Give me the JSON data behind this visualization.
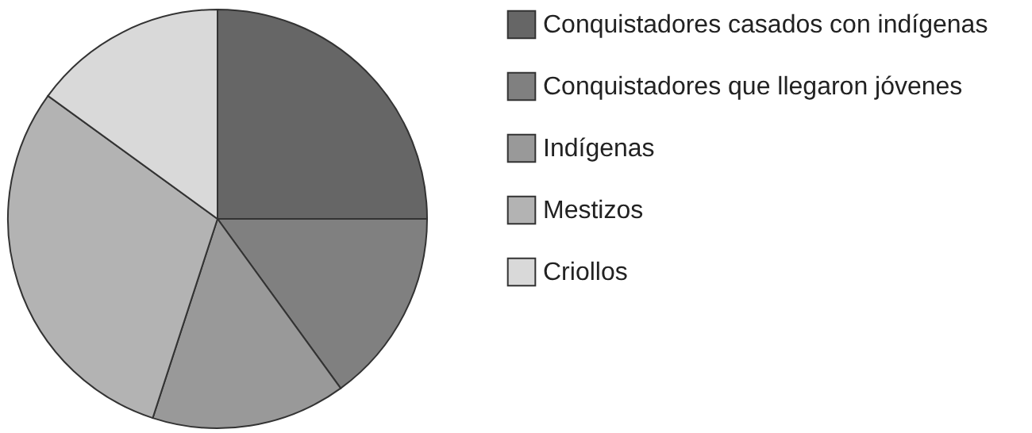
{
  "chart_data": {
    "type": "pie",
    "categories": [
      "Conquistadores casados con indígenas",
      "Conquistadores que llegaron jóvenes",
      "Indígenas",
      "Mestizos",
      "Criollos"
    ],
    "values": [
      25,
      15,
      15,
      30,
      15
    ],
    "colors": [
      "#666666",
      "#808080",
      "#999999",
      "#b3b3b3",
      "#d9d9d9"
    ],
    "legend": "right"
  }
}
